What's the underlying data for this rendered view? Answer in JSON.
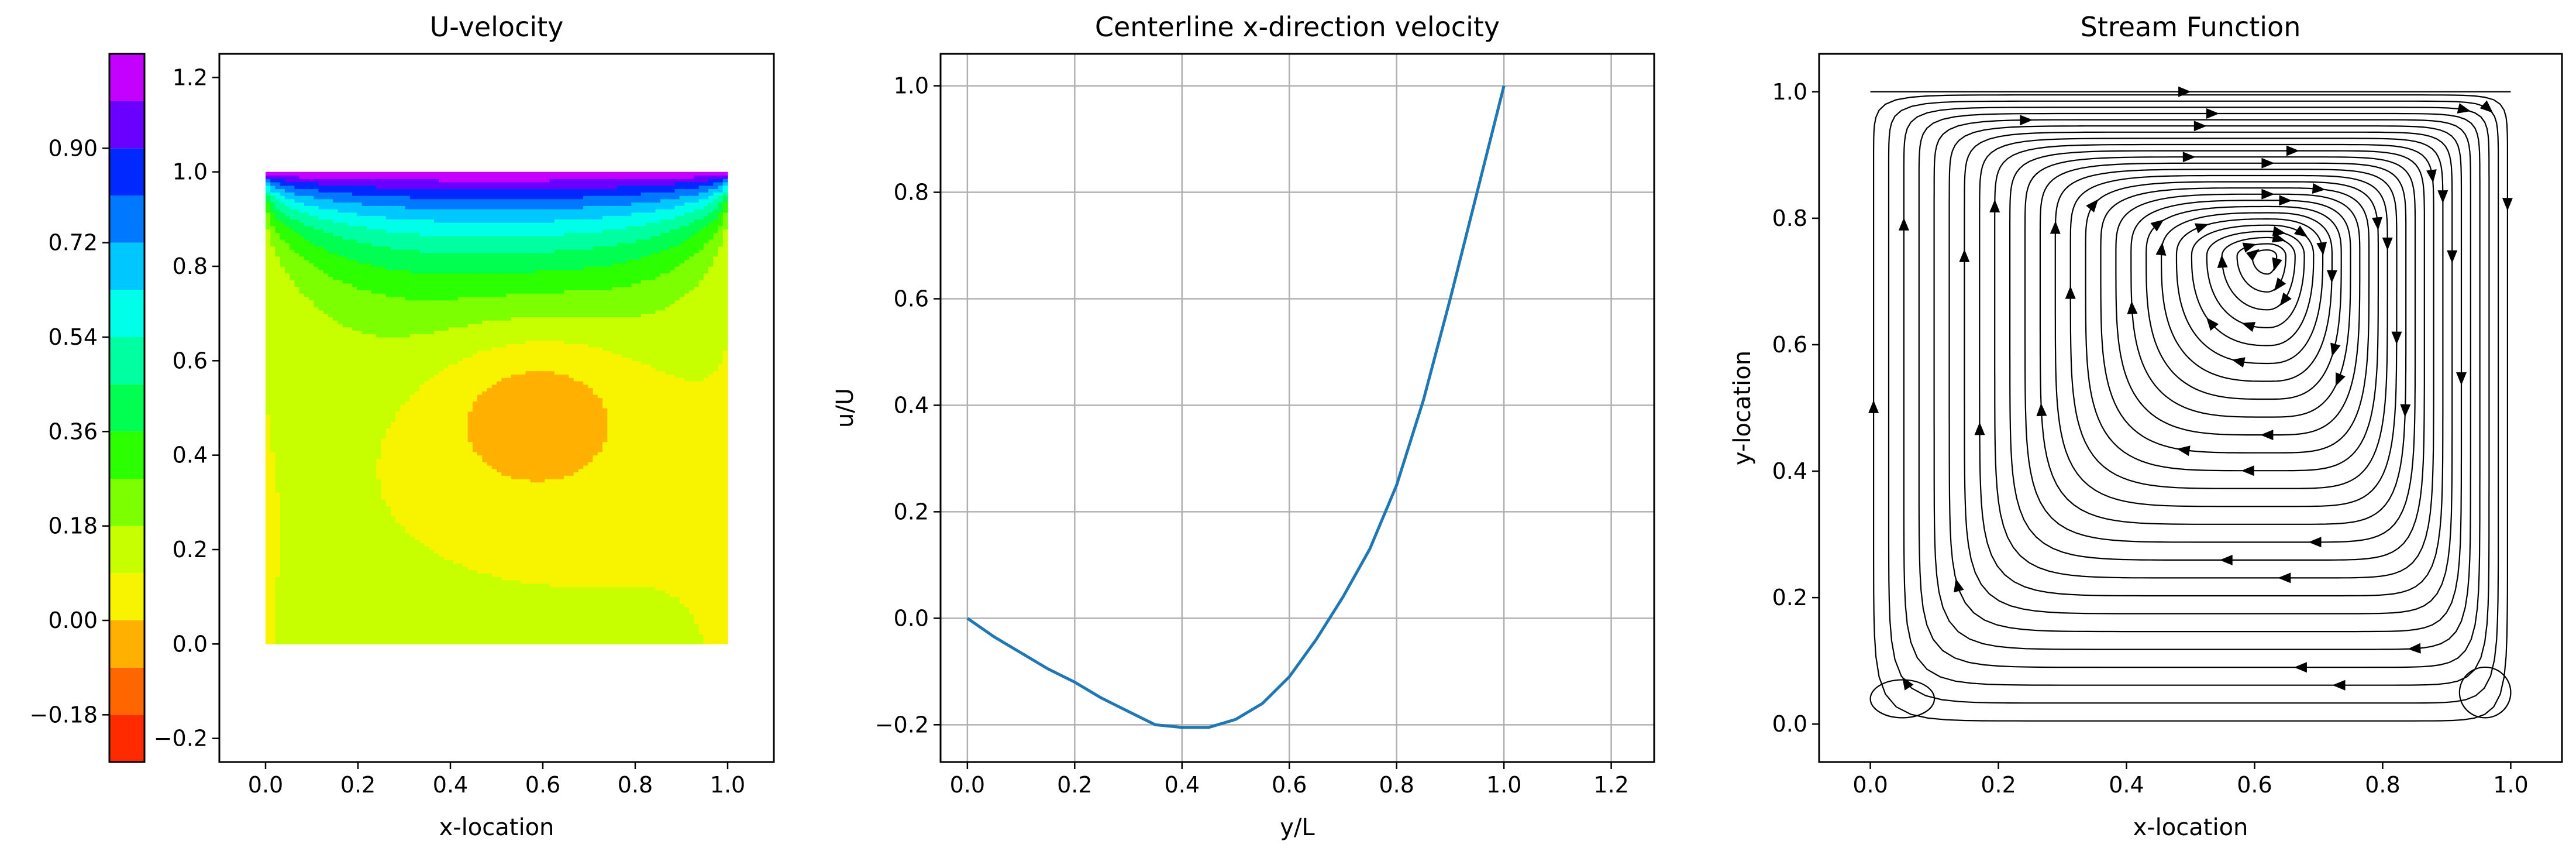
{
  "chart_data": [
    {
      "type": "contour",
      "title": "U-velocity",
      "xlabel": "x-location",
      "ylabel": "",
      "xlim": [
        -0.1,
        1.1
      ],
      "ylim": [
        -0.25,
        1.25
      ],
      "x_ticks": [
        "0.0",
        "0.2",
        "0.4",
        "0.6",
        "0.8",
        "1.0"
      ],
      "y_ticks": [
        "-0.2",
        "0.0",
        "0.2",
        "0.4",
        "0.6",
        "0.8",
        "1.0",
        "1.2"
      ],
      "colorbar": {
        "min": -0.27,
        "max": 1.08,
        "levels": [
          -0.27,
          -0.18,
          -0.09,
          0.0,
          0.09,
          0.18,
          0.27,
          0.36,
          0.45,
          0.54,
          0.63,
          0.72,
          0.81,
          0.9,
          0.99,
          1.08
        ],
        "colors": [
          "#ff2a00",
          "#ff6600",
          "#ffb000",
          "#f8f400",
          "#c8ff00",
          "#7cff00",
          "#2cff00",
          "#00ff50",
          "#00ffa0",
          "#00ffe8",
          "#00c8ff",
          "#0078ff",
          "#0028ff",
          "#6a00ff",
          "#c400ff",
          "#ff00cc",
          "#ff0070"
        ],
        "tick_labels": [
          "-0.18",
          "0.00",
          "0.18",
          "0.36",
          "0.54",
          "0.72",
          "0.90"
        ]
      },
      "field_features": [
        {
          "region": "lid boundary layer",
          "y_range": [
            0.7,
            1.0
          ],
          "u_range": [
            0.09,
            1.0
          ]
        },
        {
          "region": "return-flow core",
          "center": [
            0.6,
            0.5
          ],
          "u_min": -0.21
        }
      ]
    },
    {
      "type": "line",
      "title": "Centerline x-direction velocity",
      "xlabel": "y/L",
      "ylabel": "u/U",
      "xlim": [
        -0.05,
        1.28
      ],
      "ylim": [
        -0.27,
        1.06
      ],
      "grid": true,
      "x_ticks": [
        "0.0",
        "0.2",
        "0.4",
        "0.6",
        "0.8",
        "1.0",
        "1.2"
      ],
      "y_ticks": [
        "-0.2",
        "0.0",
        "0.2",
        "0.4",
        "0.6",
        "0.8",
        "1.0"
      ],
      "color": "#1f77b4",
      "series": [
        {
          "x": [
            0.0,
            0.05,
            0.1,
            0.15,
            0.2,
            0.25,
            0.3,
            0.35,
            0.4,
            0.45,
            0.5,
            0.55,
            0.6,
            0.65,
            0.7,
            0.75,
            0.8,
            0.85,
            0.9,
            0.95,
            1.0
          ],
          "y": [
            0.0,
            -0.035,
            -0.065,
            -0.095,
            -0.12,
            -0.15,
            -0.175,
            -0.2,
            -0.205,
            -0.205,
            -0.19,
            -0.16,
            -0.11,
            -0.04,
            0.04,
            0.13,
            0.25,
            0.41,
            0.6,
            0.8,
            1.0
          ]
        }
      ]
    },
    {
      "type": "streamplot",
      "title": "Stream Function",
      "xlabel": "x-location",
      "ylabel": "y-location",
      "xlim": [
        -0.08,
        1.08
      ],
      "ylim": [
        -0.06,
        1.06
      ],
      "x_ticks": [
        "0.0",
        "0.2",
        "0.4",
        "0.6",
        "0.8",
        "1.0"
      ],
      "y_ticks": [
        "0.0",
        "0.2",
        "0.4",
        "0.6",
        "0.8",
        "1.0"
      ],
      "vortex_center": [
        0.62,
        0.74
      ],
      "rotation": "clockwise",
      "line_color": "#000000"
    }
  ]
}
